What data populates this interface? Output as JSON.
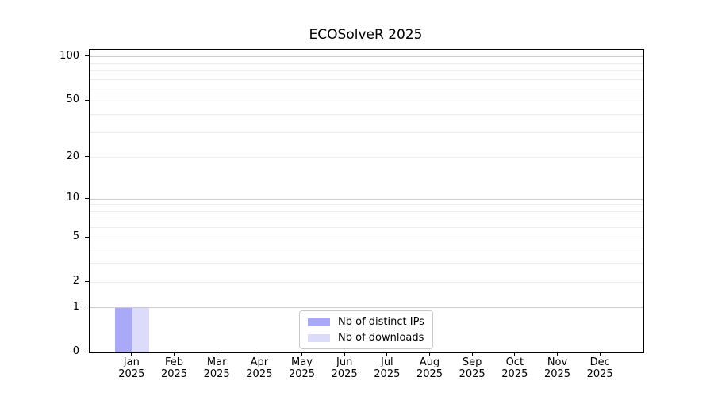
{
  "chart_data": {
    "type": "bar",
    "title": "ECOSolveR 2025",
    "months": [
      "Jan",
      "Feb",
      "Mar",
      "Apr",
      "May",
      "Jun",
      "Jul",
      "Aug",
      "Sep",
      "Oct",
      "Nov",
      "Dec"
    ],
    "year": "2025",
    "series": [
      {
        "name": "Nb of distinct IPs",
        "color": "#a9a9f7",
        "values": [
          1,
          0,
          0,
          0,
          0,
          0,
          0,
          0,
          0,
          0,
          0,
          0
        ]
      },
      {
        "name": "Nb of downloads",
        "color": "#dcdcfa",
        "values": [
          1,
          0,
          0,
          0,
          0,
          0,
          0,
          0,
          0,
          0,
          0,
          0
        ]
      }
    ],
    "y_scale": "log10(value+1)",
    "y_ticks": [
      0,
      1,
      2,
      5,
      10,
      20,
      50,
      100
    ],
    "ylim": [
      0,
      111.6
    ],
    "grid_major": [
      1,
      10,
      100
    ],
    "grid_minor": [
      2,
      3,
      4,
      5,
      6,
      7,
      8,
      9,
      20,
      30,
      40,
      50,
      60,
      70,
      80,
      90
    ],
    "legend": {
      "position": "lower-center",
      "entries": [
        "Nb of distinct IPs",
        "Nb of downloads"
      ]
    },
    "colors": {
      "grid_major": "#cccccc",
      "grid_minor": "#ececec",
      "spine": "#000000",
      "text": "#000000",
      "background": "#ffffff"
    }
  }
}
